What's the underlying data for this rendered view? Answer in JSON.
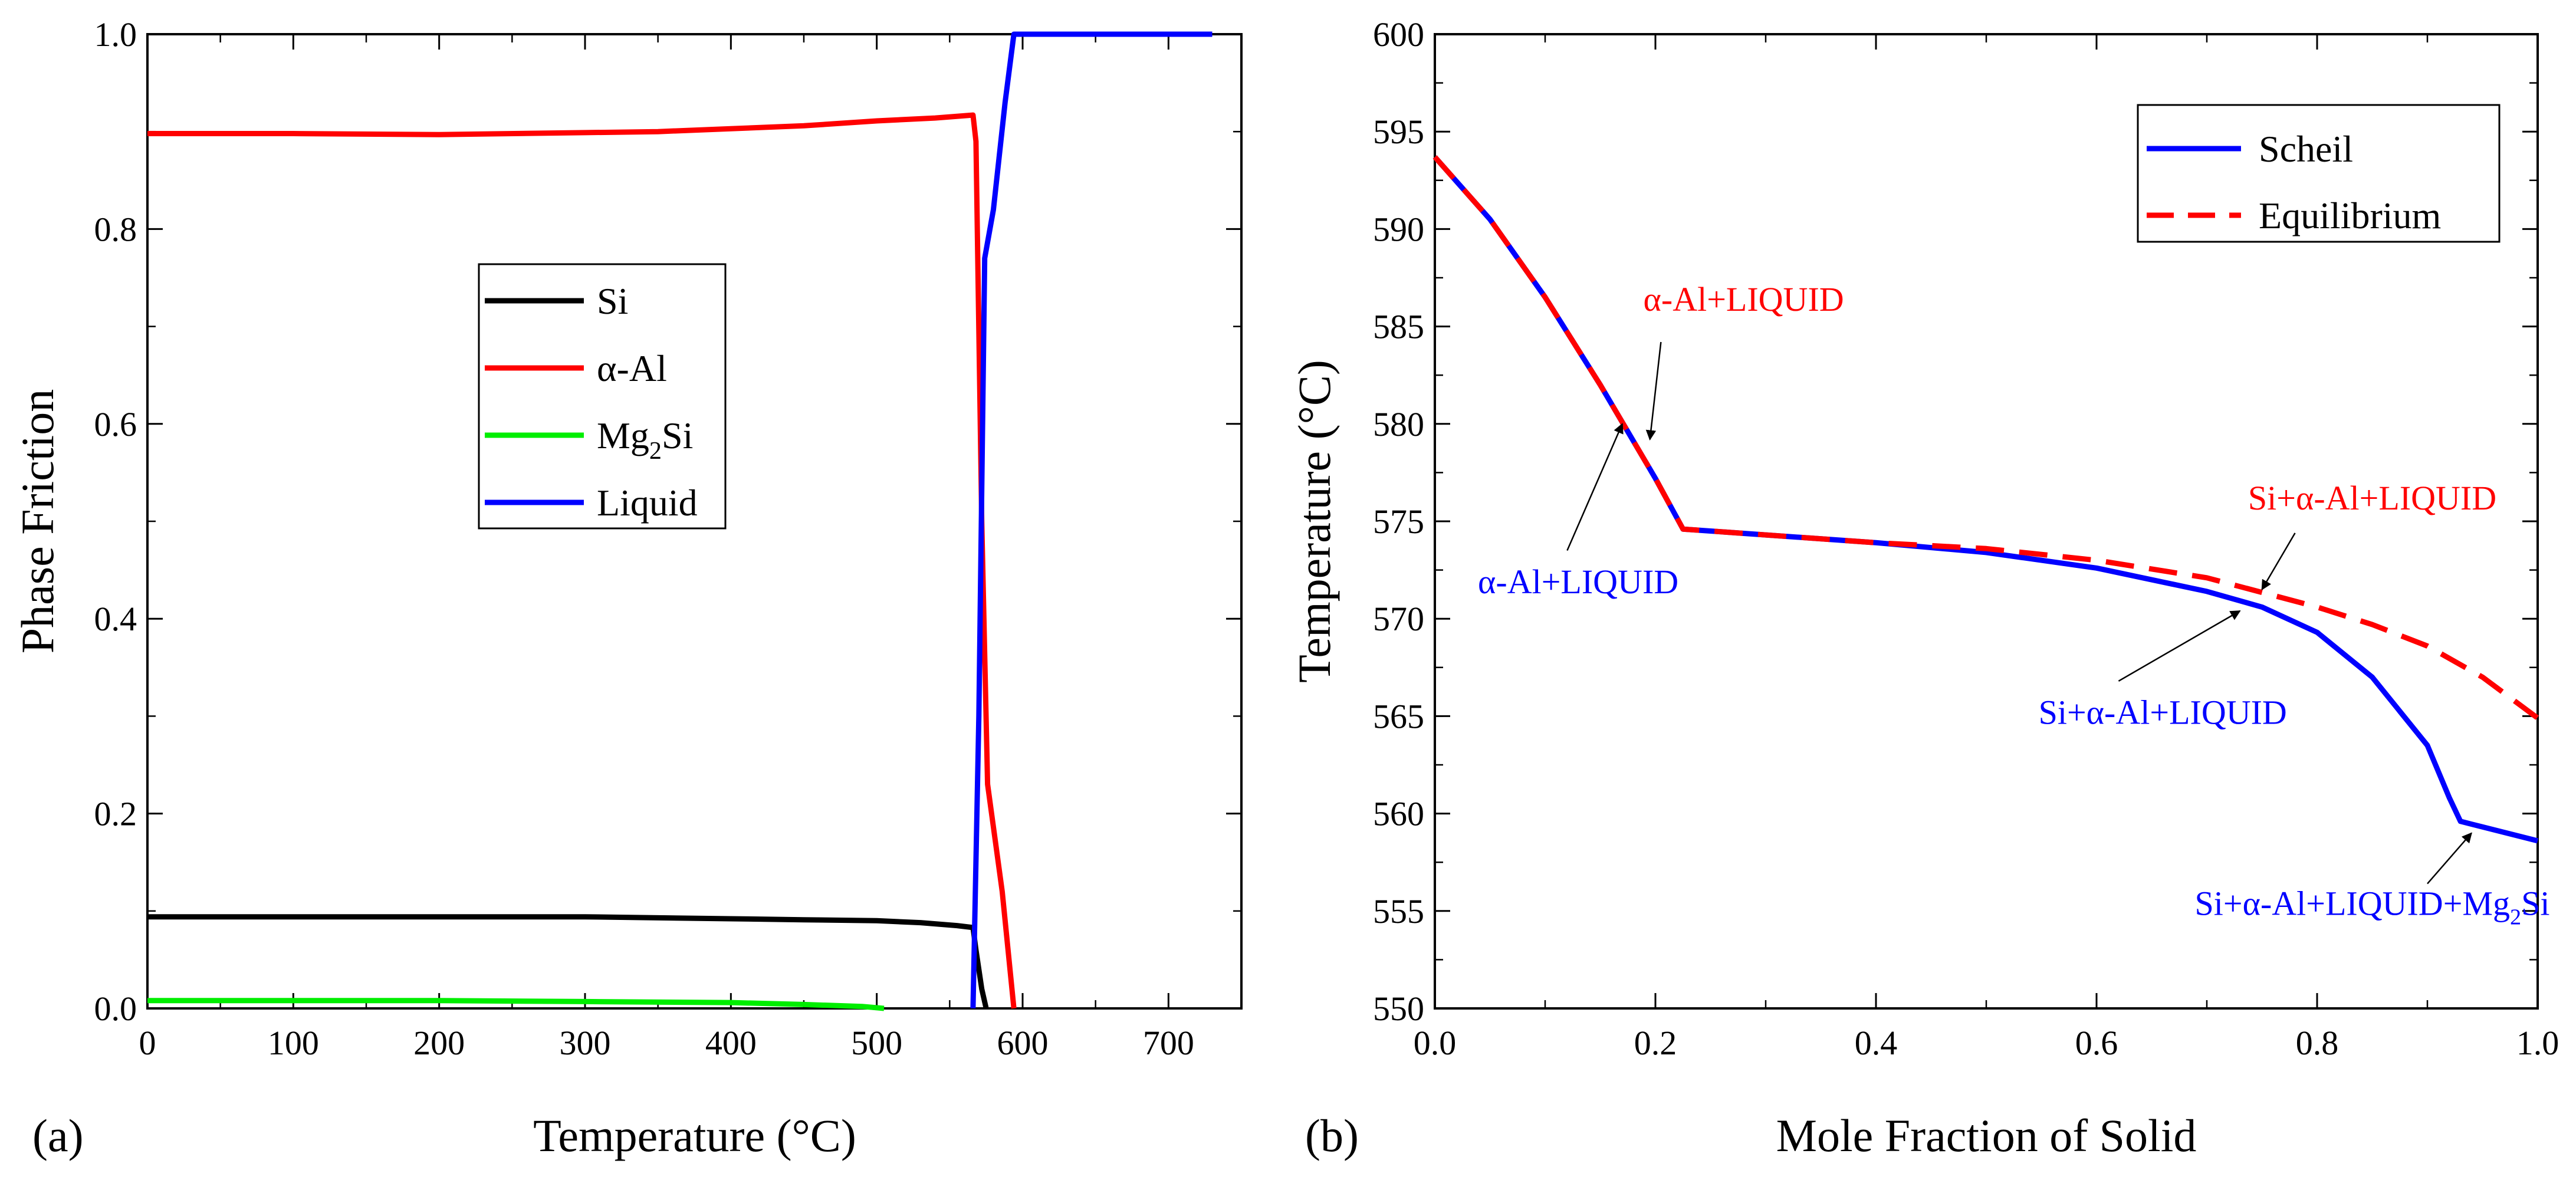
{
  "colors": {
    "Si": "#000000",
    "alpha_Al": "#ff0000",
    "Mg2Si": "#00ee00",
    "Liquid": "#0000ff",
    "Scheil": "#0000ff",
    "Equilibrium": "#ff0000",
    "annotation_blue": "#0000ff",
    "annotation_red": "#ff0000",
    "axis": "#000000"
  },
  "chart_data": [
    {
      "id": "a",
      "panel_label": "(a)",
      "type": "line",
      "title": "",
      "xlabel": "Temperature (°C)",
      "ylabel": "Phase Friction",
      "xlim": [
        0,
        750
      ],
      "ylim": [
        0,
        1.0
      ],
      "xticks": [
        0,
        100,
        200,
        300,
        400,
        500,
        600,
        700
      ],
      "xtick_labels": [
        "0",
        "100",
        "200",
        "300",
        "400",
        "500",
        "600",
        "700"
      ],
      "yticks": [
        0,
        0.2,
        0.4,
        0.6,
        0.8,
        1.0
      ],
      "ytick_labels": [
        "0.0",
        "0.2",
        "0.4",
        "0.6",
        "0.8",
        "1.0"
      ],
      "grid": false,
      "legend_position": "center-left",
      "series": [
        {
          "key": "Si",
          "name": "Si",
          "legend_main": "Si",
          "legend_sub": "",
          "legend_tail": "",
          "color": "#000000",
          "x": [
            0,
            100,
            200,
            300,
            400,
            450,
            500,
            530,
            555,
            566,
            568,
            572,
            575
          ],
          "y": [
            0.094,
            0.094,
            0.094,
            0.094,
            0.092,
            0.091,
            0.09,
            0.088,
            0.085,
            0.083,
            0.06,
            0.02,
            0.0
          ]
        },
        {
          "key": "alpha_Al",
          "name": "α-Al",
          "legend_main": "α-Al",
          "legend_sub": "",
          "legend_tail": "",
          "color": "#ff0000",
          "x": [
            0,
            100,
            200,
            300,
            350,
            400,
            450,
            500,
            540,
            566,
            568,
            572,
            576,
            586,
            594
          ],
          "y": [
            0.898,
            0.898,
            0.897,
            0.899,
            0.9,
            0.903,
            0.906,
            0.911,
            0.914,
            0.917,
            0.89,
            0.5,
            0.23,
            0.12,
            0.0
          ]
        },
        {
          "key": "Mg2Si",
          "name": "Mg2Si",
          "legend_main": "Mg",
          "legend_sub": "2",
          "legend_tail": "Si",
          "color": "#00ee00",
          "x": [
            0,
            100,
            200,
            300,
            400,
            450,
            490,
            505
          ],
          "y": [
            0.008,
            0.008,
            0.008,
            0.007,
            0.006,
            0.004,
            0.002,
            0.0
          ]
        },
        {
          "key": "Liquid",
          "name": "Liquid",
          "legend_main": "Liquid",
          "legend_sub": "",
          "legend_tail": "",
          "color": "#0000ff",
          "x": [
            566,
            570,
            574,
            580,
            588,
            594,
            600,
            650,
            700,
            730
          ],
          "y": [
            0.0,
            0.3,
            0.77,
            0.82,
            0.93,
            1.0,
            1.0,
            1.0,
            1.0,
            1.0
          ]
        }
      ]
    },
    {
      "id": "b",
      "panel_label": "(b)",
      "type": "line",
      "title": "",
      "xlabel": "Mole Fraction of Solid",
      "ylabel": "Temperature (°C)",
      "xlim": [
        0,
        1.0
      ],
      "ylim": [
        550,
        600
      ],
      "xticks": [
        0,
        0.2,
        0.4,
        0.6,
        0.8,
        1.0
      ],
      "xtick_labels": [
        "0.0",
        "0.2",
        "0.4",
        "0.6",
        "0.8",
        "1.0"
      ],
      "yticks": [
        550,
        555,
        560,
        565,
        570,
        575,
        580,
        585,
        590,
        595,
        600
      ],
      "ytick_labels": [
        "550",
        "555",
        "560",
        "565",
        "570",
        "575",
        "580",
        "585",
        "590",
        "595",
        "600"
      ],
      "grid": false,
      "legend_position": "top-right",
      "series": [
        {
          "key": "Scheil",
          "name": "Scheil",
          "legend_main": "Scheil",
          "legend_sub": "",
          "legend_tail": "",
          "color": "#0000ff",
          "dash": "solid",
          "x": [
            0,
            0.05,
            0.1,
            0.15,
            0.2,
            0.225,
            0.3,
            0.4,
            0.5,
            0.6,
            0.7,
            0.75,
            0.8,
            0.85,
            0.9,
            0.92,
            0.93,
            1.0
          ],
          "y": [
            593.7,
            590.5,
            586.5,
            582.0,
            577.2,
            574.6,
            574.3,
            573.9,
            573.4,
            572.6,
            571.4,
            570.6,
            569.3,
            567.0,
            563.5,
            560.8,
            559.6,
            558.6
          ]
        },
        {
          "key": "Equilibrium",
          "name": "Equilibrium",
          "legend_main": "Equilibrium",
          "legend_sub": "",
          "legend_tail": "",
          "color": "#ff0000",
          "dash": "dashed",
          "x": [
            0,
            0.05,
            0.1,
            0.15,
            0.2,
            0.225,
            0.3,
            0.4,
            0.5,
            0.6,
            0.7,
            0.8,
            0.85,
            0.9,
            0.95,
            1.0
          ],
          "y": [
            593.7,
            590.5,
            586.5,
            582.0,
            577.2,
            574.6,
            574.3,
            573.9,
            573.6,
            573.0,
            572.1,
            570.6,
            569.7,
            568.6,
            567.0,
            564.9
          ]
        }
      ],
      "annotations": [
        {
          "key": "ann-red-1",
          "main": "α-Al+LIQUID",
          "sub": "",
          "tail": "",
          "color": "#ff0000",
          "text_at": [
            0.28,
            585.8
          ],
          "arrow_from": [
            0.205,
            584.2
          ],
          "arrow_to": [
            0.195,
            579.2
          ]
        },
        {
          "key": "ann-blue-1",
          "main": "α-Al+LIQUID",
          "sub": "",
          "tail": "",
          "color": "#0000ff",
          "text_at": [
            0.13,
            571.3
          ],
          "arrow_from": [
            0.12,
            573.5
          ],
          "arrow_to": [
            0.17,
            580.0
          ]
        },
        {
          "key": "ann-red-2",
          "main": "Si+α-Al+LIQUID",
          "sub": "",
          "tail": "",
          "color": "#ff0000",
          "text_at": [
            0.85,
            575.6
          ],
          "arrow_from": [
            0.78,
            574.4
          ],
          "arrow_to": [
            0.75,
            571.5
          ]
        },
        {
          "key": "ann-blue-2",
          "main": "Si+α-Al+LIQUID",
          "sub": "",
          "tail": "",
          "color": "#0000ff",
          "text_at": [
            0.66,
            564.6
          ],
          "arrow_from": [
            0.62,
            566.8
          ],
          "arrow_to": [
            0.73,
            570.4
          ]
        },
        {
          "key": "ann-blue-3",
          "main": "Si+α-Al+LIQUID+Mg",
          "sub": "2",
          "tail": "Si",
          "color": "#0000ff",
          "text_at": [
            0.85,
            554.8
          ],
          "arrow_from": [
            0.9,
            556.4
          ],
          "arrow_to": [
            0.94,
            559.0
          ]
        }
      ]
    }
  ]
}
